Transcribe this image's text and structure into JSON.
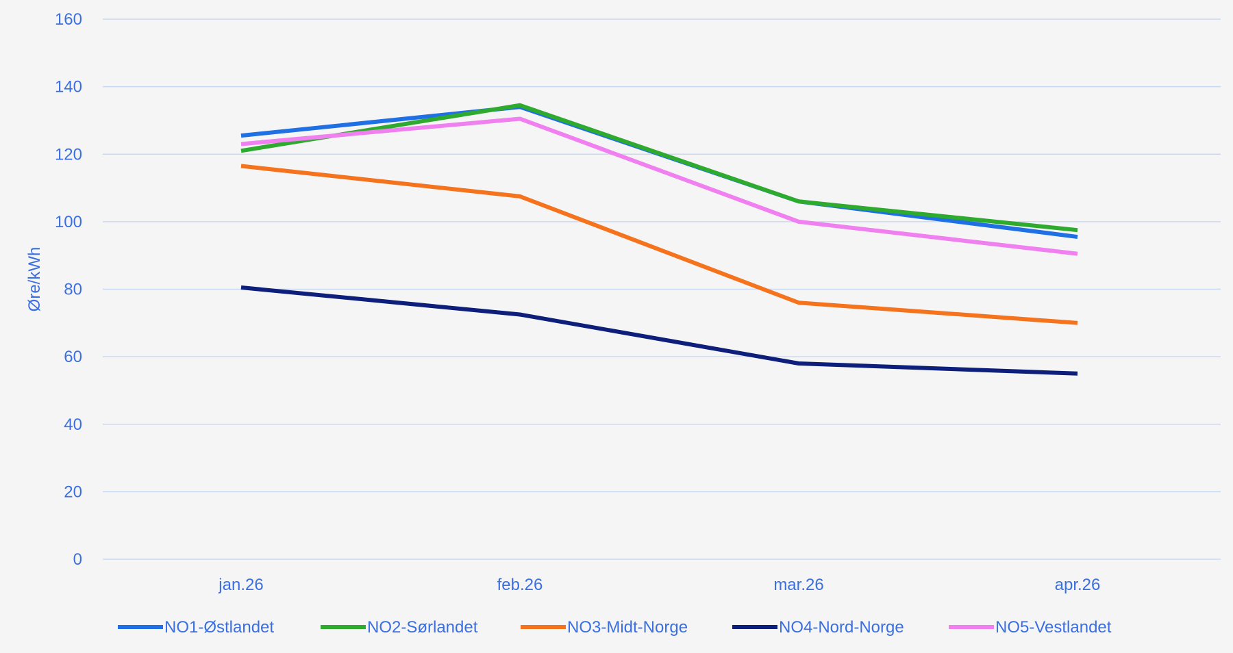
{
  "chart_data": {
    "type": "line",
    "title": "",
    "xlabel": "",
    "ylabel": "Øre/kWh",
    "ylim": [
      0,
      160
    ],
    "yticks": [
      0,
      20,
      40,
      60,
      80,
      100,
      120,
      140,
      160
    ],
    "grid": true,
    "legend_position": "bottom",
    "categories": [
      "jan.26",
      "feb.26",
      "mar.26",
      "apr.26"
    ],
    "series": [
      {
        "name": "NO1-Østlandet",
        "color": "#1f6fe5",
        "values": [
          125.5,
          134.0,
          106.0,
          95.5
        ]
      },
      {
        "name": "NO2-Sørlandet",
        "color": "#2eaa2e",
        "values": [
          121.0,
          134.5,
          106.0,
          97.5
        ]
      },
      {
        "name": "NO3-Midt-Norge",
        "color": "#f5731c",
        "values": [
          116.5,
          107.5,
          76.0,
          70.0
        ]
      },
      {
        "name": "NO4-Nord-Norge",
        "color": "#0d1f7a",
        "values": [
          80.5,
          72.5,
          58.0,
          55.0
        ]
      },
      {
        "name": "NO5-Vestlandet",
        "color": "#f07ff0",
        "values": [
          123.0,
          130.5,
          100.0,
          90.5
        ]
      }
    ]
  }
}
